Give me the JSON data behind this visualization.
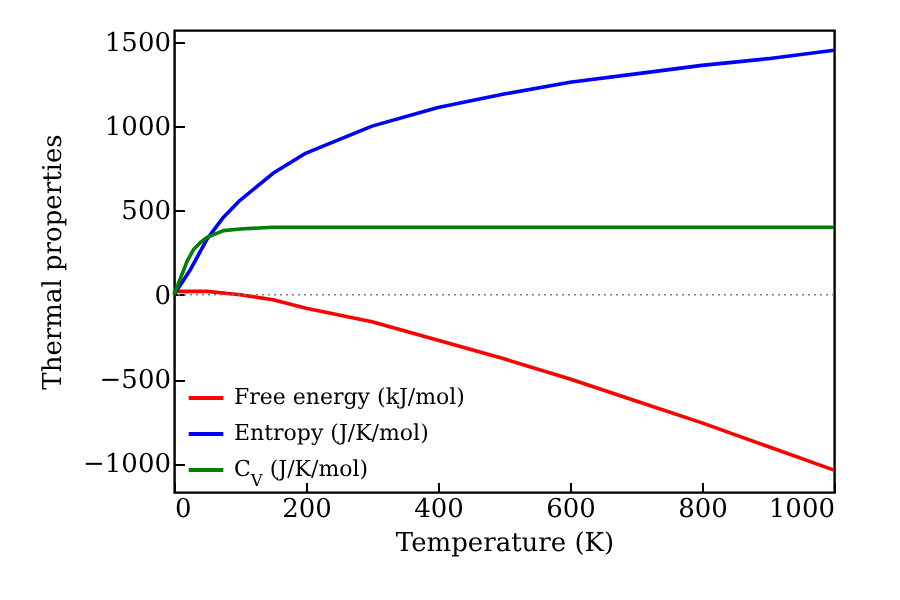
{
  "chart_data": {
    "type": "line",
    "xlabel": "Temperature (K)",
    "ylabel": "Thermal properties",
    "xlim": [
      0,
      1000
    ],
    "xticks": [
      0,
      200,
      400,
      600,
      800,
      1000
    ],
    "ylim": [
      -1170,
      1570
    ],
    "yticks": [
      -1000,
      -500,
      0,
      500,
      1000,
      1500
    ],
    "legend": "bottom left",
    "ref_lines": [
      {
        "axis": "y",
        "value": 0,
        "color": "#808080",
        "line_style": "dotted"
      }
    ],
    "series": [
      {
        "name": "Free energy (kJ/mol)",
        "color": "#ff0000",
        "x": [
          0,
          50,
          100,
          150,
          200,
          300,
          400,
          500,
          600,
          700,
          800,
          900,
          1000
        ],
        "values": [
          20,
          20,
          0,
          -30,
          -80,
          -160,
          -270,
          -380,
          -500,
          -630,
          -760,
          -900,
          -1040
        ]
      },
      {
        "name": "Entropy (J/K/mol)",
        "color": "#0000ff",
        "x": [
          0,
          25,
          50,
          75,
          100,
          150,
          200,
          300,
          400,
          500,
          600,
          700,
          800,
          900,
          1000
        ],
        "values": [
          0,
          150,
          330,
          460,
          560,
          720,
          840,
          1000,
          1110,
          1190,
          1260,
          1310,
          1360,
          1400,
          1450
        ]
      },
      {
        "name": "C$_{V}$ (J/K/mol)",
        "color": "#008000",
        "x": [
          0,
          10,
          20,
          30,
          40,
          50,
          75,
          100,
          150,
          200,
          400,
          600,
          800,
          1000
        ],
        "values": [
          0,
          100,
          200,
          270,
          310,
          340,
          380,
          390,
          400,
          400,
          400,
          400,
          400,
          400
        ]
      }
    ]
  }
}
